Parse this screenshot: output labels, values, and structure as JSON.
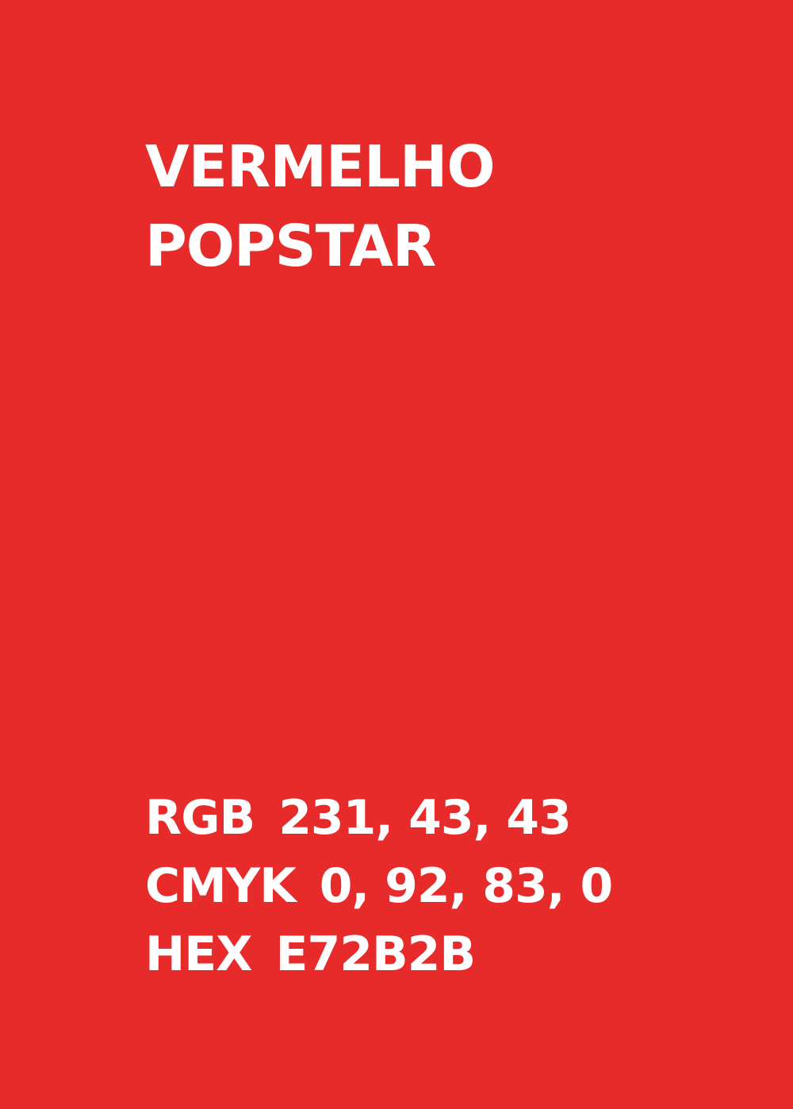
{
  "swatch": {
    "background_color": "#E72B2B",
    "text_color": "#FFFFFF",
    "name_line1": "VERMELHO",
    "name_line2": "POPSTAR"
  },
  "codes": [
    {
      "label": "RGB",
      "value": "231, 43, 43"
    },
    {
      "label": "CMYK",
      "value": "0, 92, 83, 0"
    },
    {
      "label": "HEX",
      "value": "E72B2B"
    }
  ]
}
